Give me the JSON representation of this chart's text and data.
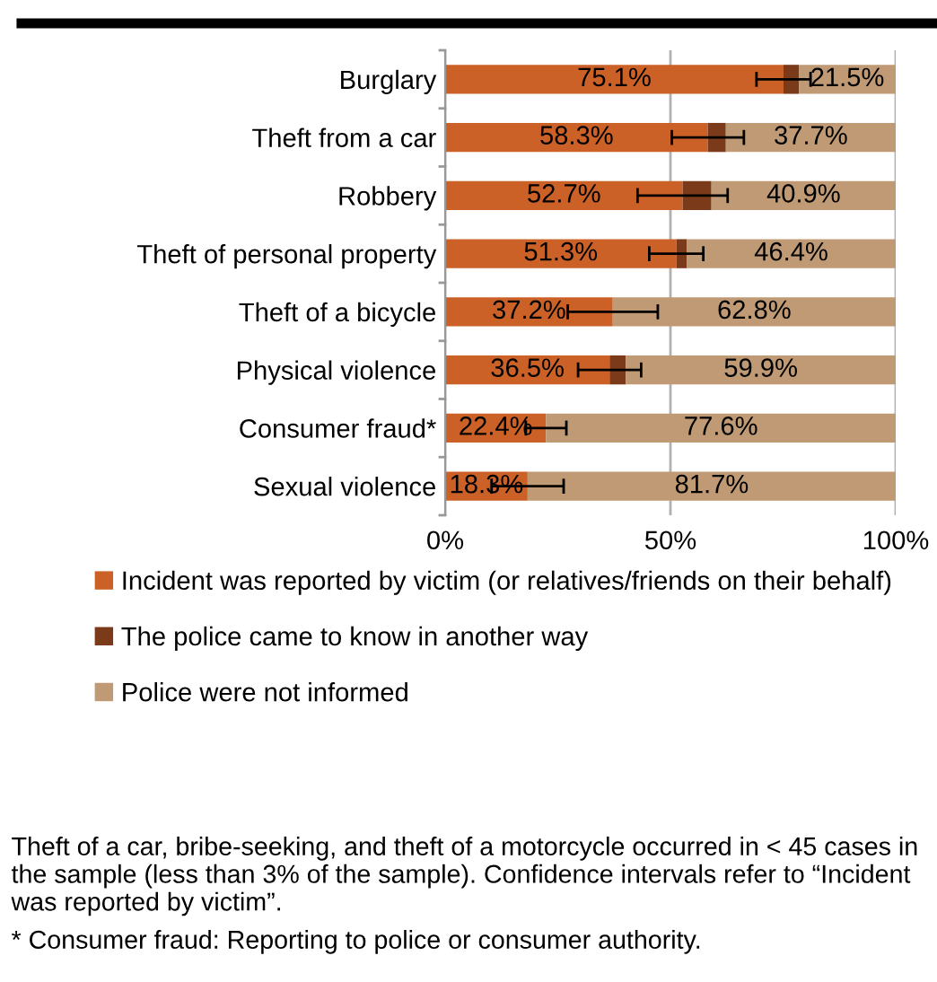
{
  "chart_data": {
    "type": "bar",
    "orientation": "horizontal",
    "stacked": true,
    "categories": [
      "Burglary",
      "Theft from a car",
      "Robbery",
      "Theft of personal property",
      "Theft of a bicycle",
      "Physical violence",
      "Consumer fraud*",
      "Sexual violence"
    ],
    "series": [
      {
        "name": "Incident was reported by victim (or relatives/friends on their behalf)",
        "color": "#cc6128",
        "values": [
          75.1,
          58.3,
          52.7,
          51.3,
          37.2,
          36.5,
          22.4,
          18.3
        ],
        "errors": [
          6,
          8,
          10,
          6,
          10,
          7,
          4.5,
          8
        ],
        "value_labels": [
          "75.1%",
          "58.3%",
          "52.7%",
          "51.3%",
          "37.2%",
          "36.5%",
          "22.4%",
          "18.3%"
        ]
      },
      {
        "name": "The police came to know in another way",
        "color": "#7b3b1a",
        "values": [
          3.4,
          4.0,
          6.4,
          2.3,
          0,
          3.6,
          0,
          0
        ]
      },
      {
        "name": "Police were not informed",
        "color": "#bf9a74",
        "values": [
          21.5,
          37.7,
          40.9,
          46.4,
          62.8,
          59.9,
          77.6,
          81.7
        ],
        "value_labels": [
          "21.5%",
          "37.7%",
          "40.9%",
          "46.4%",
          "62.8%",
          "59.9%",
          "77.6%",
          "81.7%"
        ]
      }
    ],
    "xlim": [
      0,
      100
    ],
    "xticks": [
      {
        "value": 0,
        "label": "0%"
      },
      {
        "value": 50,
        "label": "50%"
      },
      {
        "value": 100,
        "label": "100%"
      }
    ],
    "grid": "x",
    "legend": "bottom",
    "annotations": [
      "Theft of a car, bribe-seeking, and theft of a motorcycle occurred in < 45 cases in the sample (less than 3% of the sample). Confidence intervals refer to “Incident was reported by victim”.",
      "* Consumer fraud: Reporting to police or consumer authority."
    ]
  }
}
